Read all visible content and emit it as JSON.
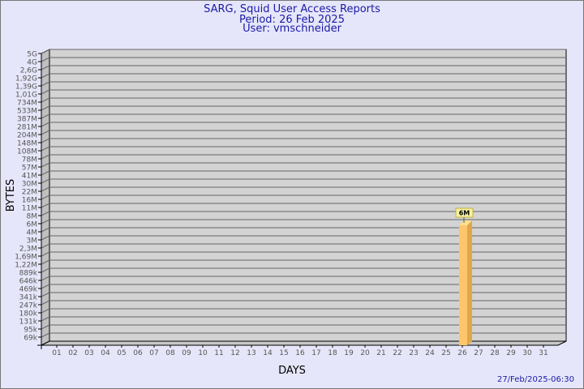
{
  "chart_data": {
    "type": "bar",
    "title": "SARG, Squid User Access Reports",
    "subtitle": [
      "Period: 26 Feb 2025",
      "User: vmschneider"
    ],
    "xlabel": "DAYS",
    "ylabel": "BYTES",
    "y_scale": "log",
    "y_tick_labels": [
      "5G",
      "4G",
      "2,6G",
      "1,92G",
      "1,39G",
      "1,01G",
      "734M",
      "533M",
      "387M",
      "281M",
      "204M",
      "148M",
      "108M",
      "78M",
      "57M",
      "41M",
      "30M",
      "22M",
      "16M",
      "11M",
      "8M",
      "6M",
      "4M",
      "3M",
      "2,3M",
      "1,69M",
      "1,22M",
      "889k",
      "646k",
      "469k",
      "341k",
      "247k",
      "180k",
      "131k",
      "95k",
      "69k"
    ],
    "categories": [
      "01",
      "02",
      "03",
      "04",
      "05",
      "06",
      "07",
      "08",
      "09",
      "10",
      "11",
      "12",
      "13",
      "14",
      "15",
      "16",
      "17",
      "18",
      "19",
      "20",
      "21",
      "22",
      "23",
      "24",
      "25",
      "26",
      "27",
      "28",
      "29",
      "30",
      "31"
    ],
    "bars": [
      {
        "category": "26",
        "value_label": "6M"
      }
    ],
    "grid": true,
    "colors": {
      "bar_front": "#fec56b",
      "bar_side": "#e0a64a",
      "bar_top": "#ffe08c",
      "wall": "#d3d3d3",
      "title": "#1a1aa6"
    }
  },
  "footer": {
    "timestamp": "27/Feb/2025-06:30"
  }
}
